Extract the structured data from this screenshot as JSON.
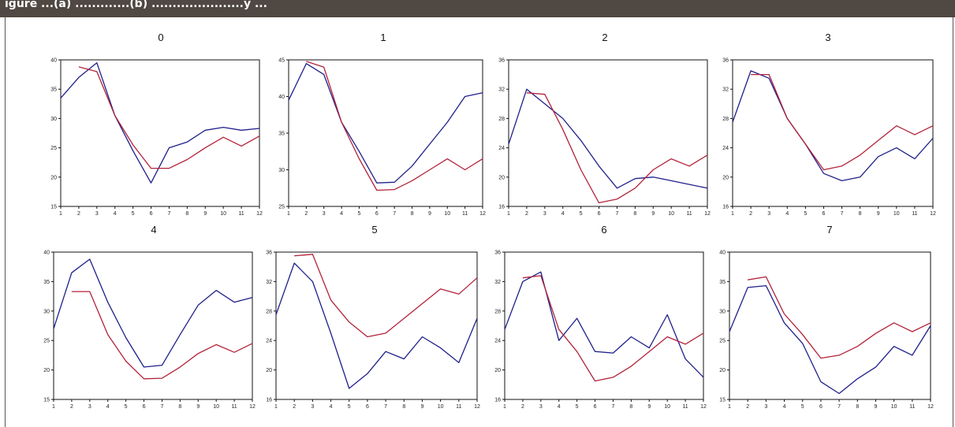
{
  "header": {
    "text": "igure ...(a) .............(b) ......................y ..."
  },
  "colors": {
    "header_bg": "#504842",
    "series_blue": "#1f1f8a",
    "series_red": "#b2223a",
    "axis": "#111111"
  },
  "chart_data": [
    {
      "type": "line",
      "title": "0",
      "x": [
        1,
        2,
        3,
        4,
        5,
        6,
        7,
        8,
        9,
        10,
        11,
        12
      ],
      "xticks": [
        1,
        2,
        3,
        4,
        5,
        6,
        7,
        8,
        9,
        10,
        11,
        12
      ],
      "ylim": [
        15,
        40
      ],
      "yticks": [
        15,
        20,
        25,
        30,
        35,
        40
      ],
      "series": [
        {
          "color": "blue",
          "values": [
            33.5,
            37.0,
            39.5,
            30.5,
            24.5,
            19.0,
            25.0,
            26.0,
            28.0,
            28.5,
            28.0,
            28.3
          ]
        },
        {
          "color": "red",
          "values": [
            null,
            38.8,
            38.0,
            30.5,
            25.5,
            21.5,
            21.5,
            23.0,
            25.0,
            26.8,
            25.3,
            27.0
          ]
        }
      ]
    },
    {
      "type": "line",
      "title": "1",
      "x": [
        1,
        2,
        3,
        4,
        5,
        6,
        7,
        8,
        9,
        10,
        11,
        12
      ],
      "xticks": [
        1,
        2,
        3,
        4,
        5,
        6,
        7,
        8,
        9,
        10,
        11,
        12
      ],
      "ylim": [
        25,
        45
      ],
      "yticks": [
        25,
        30,
        35,
        40,
        45
      ],
      "series": [
        {
          "color": "blue",
          "values": [
            39.5,
            44.5,
            43.0,
            36.5,
            32.5,
            28.2,
            28.3,
            30.5,
            33.5,
            36.5,
            40.0,
            40.5
          ]
        },
        {
          "color": "red",
          "values": [
            null,
            44.8,
            44.0,
            36.5,
            31.5,
            27.2,
            27.3,
            28.5,
            30.0,
            31.5,
            30.0,
            31.5
          ]
        }
      ]
    },
    {
      "type": "line",
      "title": "2",
      "x": [
        1,
        2,
        3,
        4,
        5,
        6,
        7,
        8,
        9,
        10,
        11,
        12
      ],
      "xticks": [
        1,
        2,
        3,
        4,
        5,
        6,
        7,
        8,
        9,
        10,
        11,
        12
      ],
      "ylim": [
        16,
        36
      ],
      "yticks": [
        16,
        20,
        24,
        28,
        32,
        36
      ],
      "series": [
        {
          "color": "blue",
          "values": [
            24.5,
            32.0,
            30.0,
            28.0,
            25.0,
            21.5,
            18.5,
            19.8,
            20.0,
            19.5,
            19.0,
            18.5
          ]
        },
        {
          "color": "red",
          "values": [
            null,
            31.5,
            31.3,
            26.5,
            21.0,
            16.5,
            17.0,
            18.5,
            21.0,
            22.5,
            21.5,
            23.0
          ]
        }
      ]
    },
    {
      "type": "line",
      "title": "3",
      "x": [
        1,
        2,
        3,
        4,
        5,
        6,
        7,
        8,
        9,
        10,
        11,
        12
      ],
      "xticks": [
        1,
        2,
        3,
        4,
        5,
        6,
        7,
        8,
        9,
        10,
        11,
        12
      ],
      "ylim": [
        16,
        36
      ],
      "yticks": [
        16,
        20,
        24,
        28,
        32,
        36
      ],
      "series": [
        {
          "color": "blue",
          "values": [
            27.5,
            34.5,
            33.5,
            28.0,
            24.5,
            20.5,
            19.5,
            20.0,
            22.8,
            24.0,
            22.5,
            25.3
          ]
        },
        {
          "color": "red",
          "values": [
            null,
            34.0,
            34.0,
            28.0,
            24.5,
            21.0,
            21.5,
            23.0,
            25.0,
            27.0,
            25.8,
            27.0
          ]
        }
      ]
    },
    {
      "type": "line",
      "title": "4",
      "x": [
        1,
        2,
        3,
        4,
        5,
        6,
        7,
        8,
        9,
        10,
        11,
        12
      ],
      "xticks": [
        1,
        2,
        3,
        4,
        5,
        6,
        7,
        8,
        9,
        10,
        11,
        12
      ],
      "ylim": [
        15,
        40
      ],
      "yticks": [
        15,
        20,
        25,
        30,
        35,
        40
      ],
      "series": [
        {
          "color": "blue",
          "values": [
            27.0,
            36.5,
            38.8,
            31.5,
            25.5,
            20.5,
            20.8,
            26.0,
            31.0,
            33.5,
            31.5,
            32.3
          ]
        },
        {
          "color": "red",
          "values": [
            null,
            33.3,
            33.3,
            26.0,
            21.5,
            18.5,
            18.6,
            20.5,
            22.8,
            24.3,
            23.0,
            24.5
          ]
        }
      ]
    },
    {
      "type": "line",
      "title": "5",
      "x": [
        1,
        2,
        3,
        4,
        5,
        6,
        7,
        8,
        9,
        10,
        11,
        12
      ],
      "xticks": [
        1,
        2,
        3,
        4,
        5,
        6,
        7,
        8,
        9,
        10,
        11,
        12
      ],
      "ylim": [
        16,
        36
      ],
      "yticks": [
        16,
        20,
        24,
        28,
        32,
        36
      ],
      "series": [
        {
          "color": "blue",
          "values": [
            27.5,
            34.5,
            32.0,
            25.0,
            17.5,
            19.5,
            22.5,
            21.5,
            24.5,
            23.0,
            21.0,
            27.0
          ]
        },
        {
          "color": "red",
          "values": [
            null,
            35.5,
            35.7,
            29.5,
            26.5,
            24.5,
            25.0,
            27.0,
            29.0,
            31.0,
            30.3,
            32.5
          ]
        }
      ]
    },
    {
      "type": "line",
      "title": "6",
      "x": [
        1,
        2,
        3,
        4,
        5,
        6,
        7,
        8,
        9,
        10,
        11,
        12
      ],
      "xticks": [
        1,
        2,
        3,
        4,
        5,
        6,
        7,
        8,
        9,
        10,
        11,
        12
      ],
      "ylim": [
        16,
        36
      ],
      "yticks": [
        16,
        20,
        24,
        28,
        32,
        36
      ],
      "series": [
        {
          "color": "blue",
          "values": [
            25.5,
            32.0,
            33.3,
            24.0,
            27.0,
            22.5,
            22.3,
            24.5,
            23.0,
            27.5,
            21.5,
            19.0
          ]
        },
        {
          "color": "red",
          "values": [
            null,
            32.5,
            32.8,
            25.5,
            22.5,
            18.5,
            19.0,
            20.5,
            22.5,
            24.5,
            23.5,
            25.0
          ]
        }
      ]
    },
    {
      "type": "line",
      "title": "7",
      "x": [
        1,
        2,
        3,
        4,
        5,
        6,
        7,
        8,
        9,
        10,
        11,
        12
      ],
      "xticks": [
        1,
        2,
        3,
        4,
        5,
        6,
        7,
        8,
        9,
        10,
        11,
        12
      ],
      "ylim": [
        15,
        40
      ],
      "yticks": [
        15,
        20,
        25,
        30,
        35,
        40
      ],
      "series": [
        {
          "color": "blue",
          "values": [
            26.5,
            34.0,
            34.3,
            28.0,
            24.5,
            18.0,
            16.0,
            18.5,
            20.5,
            24.0,
            22.5,
            27.5
          ]
        },
        {
          "color": "red",
          "values": [
            null,
            35.3,
            35.8,
            29.5,
            26.0,
            22.0,
            22.5,
            24.0,
            26.2,
            28.0,
            26.5,
            28.0
          ]
        }
      ]
    }
  ]
}
